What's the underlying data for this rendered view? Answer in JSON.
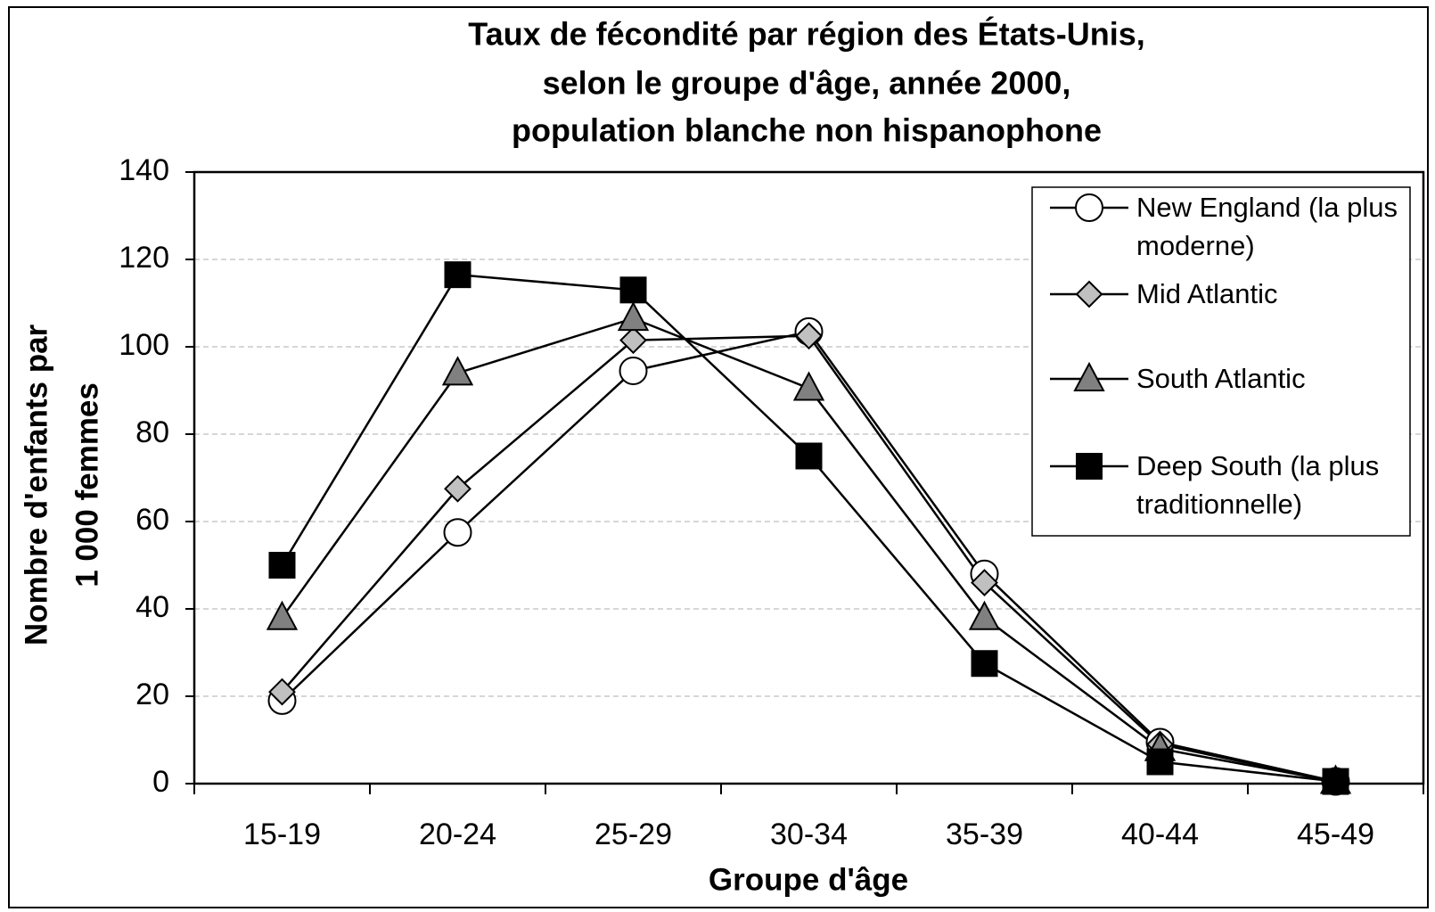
{
  "chart_data": {
    "type": "line",
    "title": [
      "Taux de fécondité par région des États-Unis,",
      "selon le groupe d'âge, année 2000,",
      "population blanche non hispanophone"
    ],
    "xlabel": "Groupe d'âge",
    "ylabel": [
      "Nombre d'enfants par",
      "1 000 femmes"
    ],
    "categories": [
      "15-19",
      "20-24",
      "25-29",
      "30-34",
      "35-39",
      "40-44",
      "45-49"
    ],
    "series": [
      {
        "name": "New England (la plus moderne)",
        "color": "#000000",
        "marker": "circle",
        "marker_fill": "#ffffff",
        "values": [
          19,
          57.5,
          94.5,
          103.5,
          48,
          9.5,
          0.5
        ]
      },
      {
        "name": "Mid Atlantic",
        "color": "#000000",
        "marker": "diamond",
        "marker_fill": "#c0c0c0",
        "values": [
          21,
          67.5,
          101.5,
          102.5,
          46,
          9,
          0.5
        ]
      },
      {
        "name": "South Atlantic",
        "color": "#000000",
        "marker": "triangle",
        "marker_fill": "#808080",
        "values": [
          38,
          94,
          106.5,
          90.5,
          38,
          8,
          0.5
        ]
      },
      {
        "name": "Deep South (la plus traditionnelle)",
        "color": "#000000",
        "marker": "square",
        "marker_fill": "#000000",
        "values": [
          50,
          116.5,
          113,
          75,
          27.5,
          5,
          0.5
        ]
      }
    ],
    "ylim": [
      0,
      140
    ],
    "yticks": [
      0,
      20,
      40,
      60,
      80,
      100,
      120,
      140
    ],
    "grid": true,
    "legend": "upper right"
  }
}
